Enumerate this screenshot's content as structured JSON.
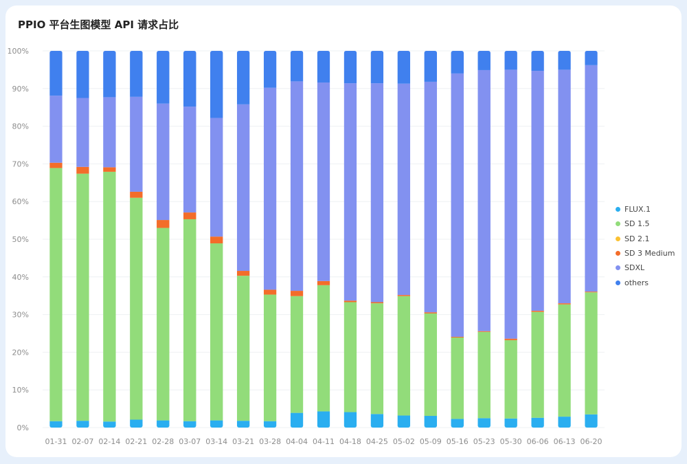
{
  "title": "PPIO 平台生图模型 API 请求占比",
  "chart_data": {
    "type": "bar",
    "stacked": true,
    "title": "PPIO 平台生图模型 API 请求占比",
    "xlabel": "",
    "ylabel": "",
    "ylim": [
      0,
      100
    ],
    "y_ticks": [
      "0%",
      "10%",
      "20%",
      "30%",
      "40%",
      "50%",
      "60%",
      "70%",
      "80%",
      "90%",
      "100%"
    ],
    "grid": true,
    "legend_position": "right",
    "categories": [
      "01-31",
      "02-07",
      "02-14",
      "02-21",
      "02-28",
      "03-07",
      "03-14",
      "03-21",
      "03-28",
      "04-04",
      "04-11",
      "04-18",
      "04-25",
      "05-02",
      "05-09",
      "05-16",
      "05-23",
      "05-30",
      "06-06",
      "06-13",
      "06-20"
    ],
    "series": [
      {
        "name": "FLUX.1",
        "color": "#2aaef0",
        "values": [
          1.7,
          1.8,
          1.6,
          2.1,
          1.9,
          1.7,
          1.9,
          1.8,
          1.7,
          3.9,
          4.3,
          4.1,
          3.6,
          3.2,
          3.1,
          2.3,
          2.5,
          2.4,
          2.6,
          2.9,
          3.5
        ]
      },
      {
        "name": "SD 1.5",
        "color": "#92dc7a",
        "values": [
          67.2,
          65.6,
          66.3,
          58.9,
          51.1,
          53.6,
          47.0,
          38.5,
          33.6,
          31.0,
          33.5,
          29.2,
          29.4,
          31.7,
          27.2,
          21.6,
          22.9,
          20.8,
          28.1,
          29.8,
          32.4
        ]
      },
      {
        "name": "SD 2.1",
        "color": "#fbc132",
        "values": [
          0,
          0,
          0,
          0,
          0,
          0,
          0,
          0,
          0,
          0,
          0,
          0,
          0,
          0,
          0,
          0,
          0,
          0,
          0,
          0,
          0
        ]
      },
      {
        "name": "SD 3 Medium",
        "color": "#f36d2a",
        "values": [
          1.4,
          1.8,
          1.2,
          1.6,
          2.1,
          1.8,
          1.8,
          1.3,
          1.3,
          1.4,
          1.1,
          0.4,
          0.3,
          0.3,
          0.3,
          0.2,
          0.2,
          0.4,
          0.3,
          0.3,
          0.2
        ]
      },
      {
        "name": "SDXL",
        "color": "#8291f0",
        "values": [
          17.8,
          18.3,
          18.6,
          25.2,
          30.9,
          28.1,
          31.5,
          44.2,
          53.6,
          55.6,
          52.7,
          57.7,
          58.1,
          56.1,
          61.2,
          69.9,
          69.3,
          71.4,
          63.7,
          62.0,
          60.1
        ]
      },
      {
        "name": "others",
        "color": "#4080ee",
        "values": [
          11.9,
          12.5,
          12.3,
          12.2,
          14.0,
          14.8,
          17.8,
          14.2,
          9.8,
          8.1,
          8.4,
          8.6,
          8.6,
          8.7,
          8.2,
          6.0,
          5.1,
          5.0,
          5.3,
          5.0,
          3.8
        ]
      }
    ]
  }
}
